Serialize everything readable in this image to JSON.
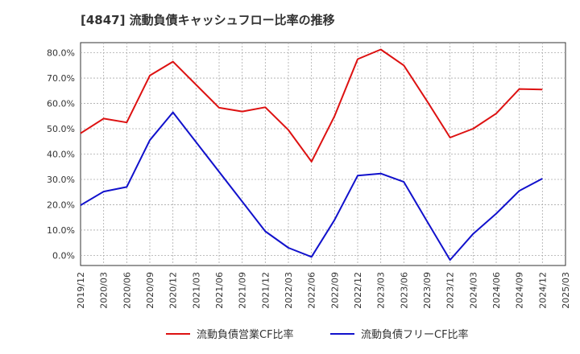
{
  "chart_data": {
    "type": "line",
    "title": "[4847]  流動負債キャッシュフロー比率の推移",
    "xlabel": "",
    "ylabel": "",
    "x_ticks": [
      "2019/12",
      "2020/03",
      "2020/06",
      "2020/09",
      "2020/12",
      "2021/03",
      "2021/06",
      "2021/09",
      "2021/12",
      "2022/03",
      "2022/06",
      "2022/09",
      "2022/12",
      "2023/03",
      "2023/06",
      "2023/09",
      "2023/12",
      "2024/03",
      "2024/06",
      "2024/09",
      "2024/12",
      "2025/03"
    ],
    "y_ticks": [
      "0.0%",
      "10.0%",
      "20.0%",
      "30.0%",
      "40.0%",
      "50.0%",
      "60.0%",
      "70.0%",
      "80.0%"
    ],
    "ylim": [
      -4,
      84
    ],
    "grid": true,
    "legend_position": "bottom",
    "series": [
      {
        "name": "流動負債営業CF比率",
        "color": "#dd1111",
        "x": [
          "2019/12",
          "2020/03",
          "2020/06",
          "2020/09",
          "2020/12",
          "2021/06",
          "2021/09",
          "2021/12",
          "2022/03",
          "2022/06",
          "2022/09",
          "2022/12",
          "2023/03",
          "2023/06",
          "2023/09",
          "2023/12",
          "2024/03",
          "2024/06",
          "2024/09",
          "2024/12"
        ],
        "values": [
          48.2,
          54.0,
          52.5,
          71.0,
          76.5,
          58.3,
          56.8,
          58.5,
          49.5,
          37.0,
          55.0,
          77.5,
          81.3,
          75.0,
          61.0,
          46.5,
          50.0,
          56.0,
          65.7,
          65.5
        ]
      },
      {
        "name": "流動負債フリーCF比率",
        "color": "#1111cc",
        "x": [
          "2019/12",
          "2020/03",
          "2020/06",
          "2020/09",
          "2020/12",
          "2021/12",
          "2022/03",
          "2022/06",
          "2022/09",
          "2022/12",
          "2023/03",
          "2023/06",
          "2023/09",
          "2023/12",
          "2024/03",
          "2024/06",
          "2024/09",
          "2024/12"
        ],
        "values": [
          19.8,
          25.2,
          27.0,
          45.5,
          56.5,
          9.5,
          3.0,
          -0.6,
          14.0,
          31.5,
          32.3,
          29.0,
          13.5,
          -1.8,
          8.5,
          16.5,
          25.5,
          30.3
        ]
      }
    ]
  }
}
